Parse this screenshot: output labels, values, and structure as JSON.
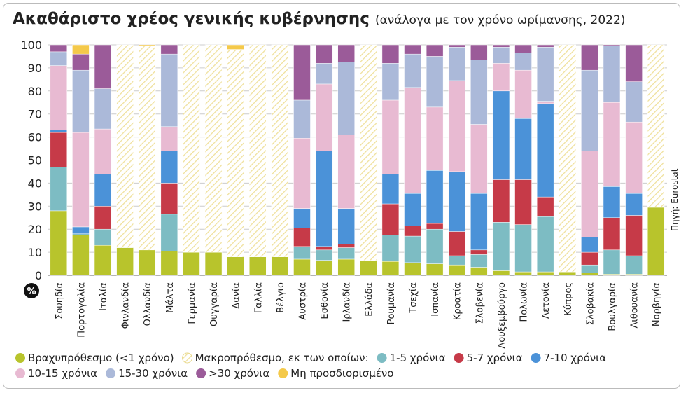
{
  "chart_data": {
    "type": "stacked_bar",
    "title": "Ακαθάριστο χρέος γενικής κυβέρνησης",
    "subtitle": "(ανάλογα με τον χρόνο ωρίμανσης, 2022)",
    "source": "Πηγή: Eurostat",
    "y_unit": "%",
    "categories": [
      "Σουηδία",
      "Πορτογαλία",
      "Ιταλία",
      "Φινλανδία",
      "Ολλανδία",
      "Μάλτα",
      "Γερμανία",
      "Ουγγαρία",
      "Δανία",
      "Γαλλία",
      "Βέλγιο",
      "Αυστρία",
      "Εσθονία",
      "Ιρλανδία",
      "Ελλάδα",
      "Ρουμανία",
      "Τσεχία",
      "Ισπανία",
      "Κροατία",
      "Σλοβενία",
      "Λουξεμβούργο",
      "Πολωνία",
      "Λετονία",
      "Κύπρος",
      "Σλοβακία",
      "Βουλγαρία",
      "Λιθουανία",
      "Νορβηγία"
    ],
    "series": [
      {
        "name": "Βραχυπρόθεσμο (<1 χρόνο)",
        "color": "#b8c42c",
        "values": [
          28,
          17.5,
          13,
          12,
          11,
          10.5,
          10,
          10,
          8,
          8,
          8,
          7,
          6.5,
          7,
          6.5,
          6,
          5.5,
          5,
          4.5,
          3.5,
          2,
          1.5,
          1.5,
          1.5,
          1,
          0.5,
          0.5,
          29.5
        ]
      },
      {
        "name": "Μακροπρόθεσμο, εκ των οποίων:",
        "color": "#efe09a",
        "hatch": true,
        "values": [
          0,
          0,
          0,
          88,
          88.5,
          0,
          90,
          90,
          90,
          92,
          92,
          0,
          0,
          0,
          93.5,
          0,
          0,
          0,
          0,
          0,
          0,
          0,
          0,
          98.5,
          0,
          0,
          0,
          70.5
        ]
      },
      {
        "name": "1-5 χρόνια",
        "color": "#7dbcc3",
        "values": [
          19,
          0.5,
          7,
          0,
          0,
          16,
          0,
          0,
          0,
          0,
          0,
          5.5,
          4.5,
          5,
          0,
          11.5,
          11.5,
          15,
          4,
          5.5,
          21,
          20.5,
          24,
          0,
          3.5,
          10.5,
          8,
          0
        ]
      },
      {
        "name": "5-7 χρόνια",
        "color": "#c63a48",
        "values": [
          15,
          0,
          10,
          0,
          0,
          13.5,
          0,
          0,
          0,
          0,
          0,
          8,
          1.5,
          1.5,
          0,
          13.5,
          4.5,
          2.5,
          10.5,
          2,
          18.5,
          19.5,
          8.5,
          0,
          5.5,
          14,
          17.5,
          0
        ]
      },
      {
        "name": "7-10 χρόνια",
        "color": "#4b92d8",
        "values": [
          1,
          3,
          14,
          0,
          0,
          14,
          0,
          0,
          0,
          0,
          0,
          8.5,
          41.5,
          15.5,
          0,
          13,
          14,
          23,
          26,
          24.5,
          38.5,
          26.5,
          40.5,
          0,
          6.5,
          13.5,
          9.5,
          0
        ]
      },
      {
        "name": "10-15 χρόνια",
        "color": "#e8bad2",
        "values": [
          28,
          41,
          19.5,
          0,
          0,
          10.5,
          0,
          0,
          0,
          0,
          0,
          30.5,
          29,
          32,
          0,
          32,
          46,
          27.5,
          39.5,
          30,
          12,
          21,
          1,
          0,
          37.5,
          36.5,
          31,
          0
        ]
      },
      {
        "name": "15-30 χρόνια",
        "color": "#abb9d9",
        "values": [
          6,
          27,
          17.5,
          0,
          0,
          31.5,
          0,
          0,
          0,
          0,
          0,
          16.5,
          9,
          31.5,
          0,
          16,
          14.5,
          22,
          14.5,
          28,
          7,
          7.5,
          23.5,
          0,
          35,
          24.5,
          17.5,
          0
        ]
      },
      {
        "name": ">30 χρόνια",
        "color": "#9b5b99",
        "values": [
          3,
          7,
          19,
          0,
          0,
          4,
          0,
          0,
          0,
          0,
          0,
          24,
          8,
          7.5,
          0,
          8,
          4,
          5,
          1,
          6.5,
          1,
          3.5,
          1,
          0,
          11,
          0.5,
          16,
          0
        ]
      },
      {
        "name": "Μη προσδιορισμένο",
        "color": "#f4c94a",
        "values": [
          0,
          4,
          0,
          0,
          0.5,
          0,
          0,
          0,
          2,
          0,
          0,
          0,
          0,
          0,
          0,
          0,
          0,
          0,
          0,
          0,
          0,
          0,
          0,
          0,
          0,
          0,
          0,
          0
        ]
      }
    ],
    "ylim": [
      0,
      100
    ],
    "yticks": [
      0,
      10,
      20,
      30,
      40,
      50,
      60,
      70,
      80,
      90,
      100
    ],
    "grid": true
  }
}
